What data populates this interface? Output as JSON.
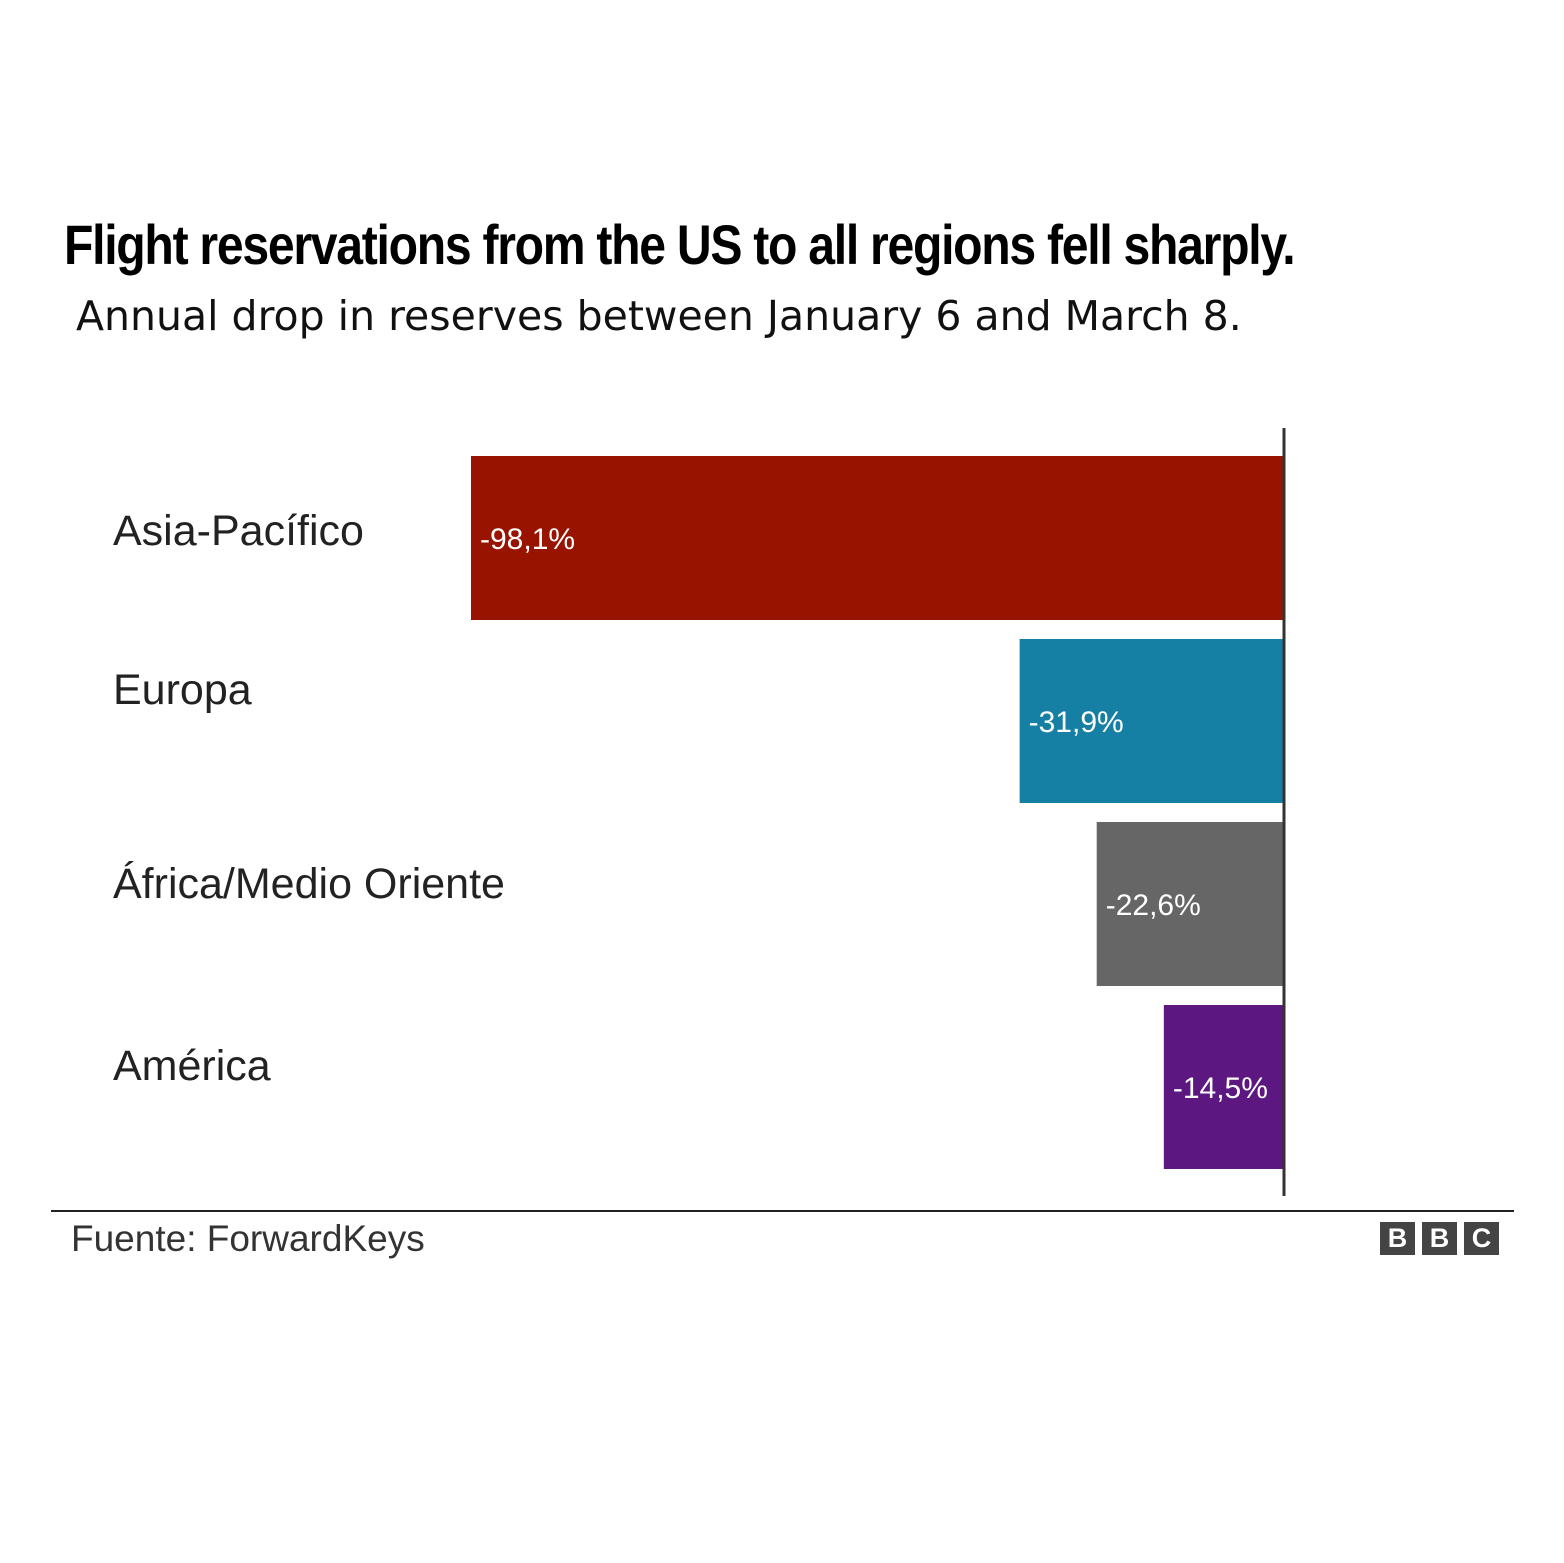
{
  "title": "Flight reservations from the US to all regions fell sharply.",
  "subtitle": "Annual drop in reserves between January 6 and March 8.",
  "source": "Fuente: ForwardKeys",
  "logo": [
    "B",
    "B",
    "C"
  ],
  "chart_data": {
    "type": "bar",
    "orientation": "horizontal",
    "categories": [
      "Asia-Pacífico",
      "Europa",
      "África/Medio Oriente",
      "América"
    ],
    "values": [
      -98.1,
      -31.9,
      -22.6,
      -14.5
    ],
    "value_labels": [
      "-98,1%",
      "-31,9%",
      "-22,6%",
      "-14,5%"
    ],
    "colors": [
      "#981400",
      "#1580A4",
      "#666666",
      "#5C1781"
    ],
    "xlim": [
      -98.1,
      0
    ],
    "grid": false,
    "legend": "none"
  }
}
